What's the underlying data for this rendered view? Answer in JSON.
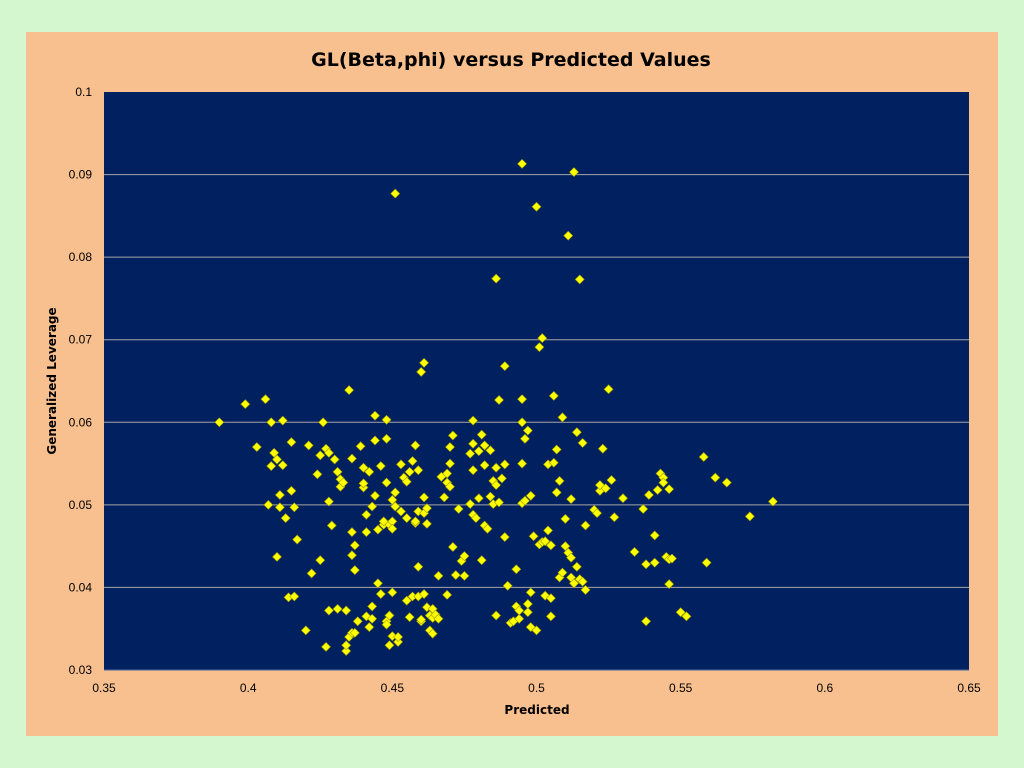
{
  "chart_data": {
    "type": "scatter",
    "title": "GL(Beta,phi) versus Predicted Values",
    "xlabel": "Predicted",
    "ylabel": "Generalized Leverage",
    "xlim": [
      0.35,
      0.65
    ],
    "ylim": [
      0.03,
      0.1
    ],
    "x_ticks": [
      "0.35",
      "0.4",
      "0.45",
      "0.5",
      "0.55",
      "0.6",
      "0.65"
    ],
    "y_ticks": [
      "0.03",
      "0.04",
      "0.05",
      "0.06",
      "0.07",
      "0.08",
      "0.09",
      "0.1"
    ],
    "grid": "horizontal",
    "legend": "none",
    "colors": {
      "plot_bg": "#002060",
      "marker_fill": "#ffff00",
      "marker_edge": "#999900",
      "gridline": "#a6a6a6",
      "frame_bg": "#f9c08f",
      "page_bg": "#d4f7d0"
    },
    "marker": "diamond",
    "points": [
      [
        0.39,
        0.06
      ],
      [
        0.399,
        0.0622
      ],
      [
        0.403,
        0.057
      ],
      [
        0.406,
        0.0628
      ],
      [
        0.407,
        0.05
      ],
      [
        0.408,
        0.06
      ],
      [
        0.408,
        0.0547
      ],
      [
        0.409,
        0.0563
      ],
      [
        0.41,
        0.0555
      ],
      [
        0.41,
        0.0437
      ],
      [
        0.411,
        0.0512
      ],
      [
        0.411,
        0.0497
      ],
      [
        0.412,
        0.0548
      ],
      [
        0.412,
        0.0602
      ],
      [
        0.413,
        0.0484
      ],
      [
        0.414,
        0.0388
      ],
      [
        0.415,
        0.0517
      ],
      [
        0.415,
        0.0576
      ],
      [
        0.416,
        0.0389
      ],
      [
        0.416,
        0.0497
      ],
      [
        0.417,
        0.0458
      ],
      [
        0.42,
        0.0348
      ],
      [
        0.421,
        0.0572
      ],
      [
        0.422,
        0.0417
      ],
      [
        0.424,
        0.0537
      ],
      [
        0.425,
        0.0433
      ],
      [
        0.425,
        0.056
      ],
      [
        0.426,
        0.06
      ],
      [
        0.427,
        0.0568
      ],
      [
        0.427,
        0.0328
      ],
      [
        0.428,
        0.0504
      ],
      [
        0.428,
        0.0372
      ],
      [
        0.428,
        0.0563
      ],
      [
        0.429,
        0.0475
      ],
      [
        0.43,
        0.0555
      ],
      [
        0.431,
        0.0374
      ],
      [
        0.431,
        0.054
      ],
      [
        0.432,
        0.0531
      ],
      [
        0.432,
        0.0522
      ],
      [
        0.433,
        0.0527
      ],
      [
        0.434,
        0.0372
      ],
      [
        0.434,
        0.0323
      ],
      [
        0.434,
        0.033
      ],
      [
        0.435,
        0.0639
      ],
      [
        0.435,
        0.034
      ],
      [
        0.436,
        0.0439
      ],
      [
        0.436,
        0.0467
      ],
      [
        0.436,
        0.0345
      ],
      [
        0.436,
        0.0556
      ],
      [
        0.437,
        0.0451
      ],
      [
        0.437,
        0.0421
      ],
      [
        0.437,
        0.0345
      ],
      [
        0.438,
        0.0359
      ],
      [
        0.439,
        0.0571
      ],
      [
        0.44,
        0.0521
      ],
      [
        0.44,
        0.0545
      ],
      [
        0.44,
        0.0526
      ],
      [
        0.441,
        0.0467
      ],
      [
        0.441,
        0.0365
      ],
      [
        0.441,
        0.0488
      ],
      [
        0.442,
        0.0352
      ],
      [
        0.442,
        0.054
      ],
      [
        0.443,
        0.0498
      ],
      [
        0.443,
        0.0377
      ],
      [
        0.443,
        0.0362
      ],
      [
        0.444,
        0.0511
      ],
      [
        0.444,
        0.0608
      ],
      [
        0.444,
        0.0578
      ],
      [
        0.445,
        0.0405
      ],
      [
        0.445,
        0.047
      ],
      [
        0.446,
        0.0547
      ],
      [
        0.446,
        0.0392
      ],
      [
        0.447,
        0.0476
      ],
      [
        0.447,
        0.048
      ],
      [
        0.448,
        0.0603
      ],
      [
        0.448,
        0.0527
      ],
      [
        0.448,
        0.058
      ],
      [
        0.448,
        0.0359
      ],
      [
        0.448,
        0.0355
      ],
      [
        0.449,
        0.0476
      ],
      [
        0.449,
        0.0366
      ],
      [
        0.449,
        0.033
      ],
      [
        0.449,
        0.0366
      ],
      [
        0.45,
        0.0341
      ],
      [
        0.45,
        0.048
      ],
      [
        0.45,
        0.0506
      ],
      [
        0.45,
        0.0471
      ],
      [
        0.45,
        0.0394
      ],
      [
        0.451,
        0.0498
      ],
      [
        0.451,
        0.0515
      ],
      [
        0.451,
        0.0877
      ],
      [
        0.452,
        0.0334
      ],
      [
        0.452,
        0.034
      ],
      [
        0.453,
        0.0492
      ],
      [
        0.453,
        0.0549
      ],
      [
        0.454,
        0.0533
      ],
      [
        0.455,
        0.0528
      ],
      [
        0.455,
        0.0384
      ],
      [
        0.455,
        0.0484
      ],
      [
        0.456,
        0.054
      ],
      [
        0.456,
        0.0364
      ],
      [
        0.457,
        0.0389
      ],
      [
        0.457,
        0.0553
      ],
      [
        0.458,
        0.0572
      ],
      [
        0.458,
        0.0478
      ],
      [
        0.458,
        0.048
      ],
      [
        0.459,
        0.0542
      ],
      [
        0.459,
        0.0492
      ],
      [
        0.459,
        0.0425
      ],
      [
        0.459,
        0.0389
      ],
      [
        0.46,
        0.0359
      ],
      [
        0.46,
        0.0661
      ],
      [
        0.46,
        0.0361
      ],
      [
        0.461,
        0.0672
      ],
      [
        0.461,
        0.049
      ],
      [
        0.461,
        0.0509
      ],
      [
        0.461,
        0.0392
      ],
      [
        0.462,
        0.0496
      ],
      [
        0.462,
        0.0477
      ],
      [
        0.462,
        0.0376
      ],
      [
        0.463,
        0.0366
      ],
      [
        0.463,
        0.0348
      ],
      [
        0.464,
        0.0344
      ],
      [
        0.464,
        0.0374
      ],
      [
        0.464,
        0.0363
      ],
      [
        0.465,
        0.0367
      ],
      [
        0.466,
        0.0362
      ],
      [
        0.466,
        0.0414
      ],
      [
        0.467,
        0.0534
      ],
      [
        0.468,
        0.0509
      ],
      [
        0.469,
        0.0391
      ],
      [
        0.469,
        0.0538
      ],
      [
        0.469,
        0.0527
      ],
      [
        0.47,
        0.057
      ],
      [
        0.47,
        0.0522
      ],
      [
        0.47,
        0.055
      ],
      [
        0.471,
        0.0584
      ],
      [
        0.471,
        0.0449
      ],
      [
        0.472,
        0.0415
      ],
      [
        0.473,
        0.0495
      ],
      [
        0.474,
        0.0432
      ],
      [
        0.475,
        0.0414
      ],
      [
        0.475,
        0.0438
      ],
      [
        0.477,
        0.0562
      ],
      [
        0.477,
        0.0501
      ],
      [
        0.478,
        0.0602
      ],
      [
        0.478,
        0.0488
      ],
      [
        0.478,
        0.0574
      ],
      [
        0.478,
        0.0542
      ],
      [
        0.479,
        0.0484
      ],
      [
        0.48,
        0.0565
      ],
      [
        0.48,
        0.0508
      ],
      [
        0.481,
        0.0433
      ],
      [
        0.481,
        0.0585
      ],
      [
        0.482,
        0.0548
      ],
      [
        0.482,
        0.0572
      ],
      [
        0.482,
        0.0475
      ],
      [
        0.483,
        0.0471
      ],
      [
        0.484,
        0.051
      ],
      [
        0.484,
        0.0566
      ],
      [
        0.485,
        0.0501
      ],
      [
        0.485,
        0.0529
      ],
      [
        0.486,
        0.0545
      ],
      [
        0.486,
        0.0366
      ],
      [
        0.486,
        0.0524
      ],
      [
        0.486,
        0.0774
      ],
      [
        0.487,
        0.0627
      ],
      [
        0.487,
        0.0503
      ],
      [
        0.488,
        0.0532
      ],
      [
        0.489,
        0.0549
      ],
      [
        0.489,
        0.0668
      ],
      [
        0.489,
        0.0461
      ],
      [
        0.49,
        0.0402
      ],
      [
        0.491,
        0.0357
      ],
      [
        0.492,
        0.0359
      ],
      [
        0.493,
        0.0422
      ],
      [
        0.493,
        0.0377
      ],
      [
        0.494,
        0.0362
      ],
      [
        0.494,
        0.0372
      ],
      [
        0.495,
        0.0913
      ],
      [
        0.495,
        0.0502
      ],
      [
        0.495,
        0.0628
      ],
      [
        0.495,
        0.055
      ],
      [
        0.495,
        0.06
      ],
      [
        0.496,
        0.058
      ],
      [
        0.496,
        0.0505
      ],
      [
        0.497,
        0.059
      ],
      [
        0.497,
        0.037
      ],
      [
        0.497,
        0.038
      ],
      [
        0.498,
        0.0352
      ],
      [
        0.498,
        0.0511
      ],
      [
        0.498,
        0.0394
      ],
      [
        0.499,
        0.0462
      ],
      [
        0.5,
        0.0861
      ],
      [
        0.5,
        0.0348
      ],
      [
        0.501,
        0.0691
      ],
      [
        0.501,
        0.0452
      ],
      [
        0.502,
        0.0455
      ],
      [
        0.502,
        0.0702
      ],
      [
        0.503,
        0.039
      ],
      [
        0.503,
        0.0456
      ],
      [
        0.504,
        0.0469
      ],
      [
        0.504,
        0.0549
      ],
      [
        0.505,
        0.0387
      ],
      [
        0.505,
        0.0365
      ],
      [
        0.505,
        0.0451
      ],
      [
        0.506,
        0.0632
      ],
      [
        0.506,
        0.0551
      ],
      [
        0.507,
        0.0567
      ],
      [
        0.507,
        0.0515
      ],
      [
        0.508,
        0.0529
      ],
      [
        0.508,
        0.0412
      ],
      [
        0.509,
        0.0418
      ],
      [
        0.509,
        0.0606
      ],
      [
        0.51,
        0.045
      ],
      [
        0.51,
        0.0483
      ],
      [
        0.511,
        0.0826
      ],
      [
        0.511,
        0.0442
      ],
      [
        0.512,
        0.0436
      ],
      [
        0.512,
        0.0507
      ],
      [
        0.512,
        0.0412
      ],
      [
        0.513,
        0.0903
      ],
      [
        0.513,
        0.0405
      ],
      [
        0.514,
        0.0425
      ],
      [
        0.514,
        0.0588
      ],
      [
        0.515,
        0.0773
      ],
      [
        0.515,
        0.041
      ],
      [
        0.516,
        0.0575
      ],
      [
        0.516,
        0.0407
      ],
      [
        0.517,
        0.0475
      ],
      [
        0.517,
        0.0397
      ],
      [
        0.52,
        0.0494
      ],
      [
        0.521,
        0.049
      ],
      [
        0.522,
        0.0517
      ],
      [
        0.522,
        0.0524
      ],
      [
        0.523,
        0.0568
      ],
      [
        0.524,
        0.052
      ],
      [
        0.525,
        0.064
      ],
      [
        0.526,
        0.053
      ],
      [
        0.527,
        0.0485
      ],
      [
        0.53,
        0.0508
      ],
      [
        0.534,
        0.0443
      ],
      [
        0.537,
        0.0495
      ],
      [
        0.538,
        0.0428
      ],
      [
        0.538,
        0.0359
      ],
      [
        0.539,
        0.0512
      ],
      [
        0.541,
        0.0463
      ],
      [
        0.541,
        0.043
      ],
      [
        0.542,
        0.0518
      ],
      [
        0.543,
        0.0538
      ],
      [
        0.544,
        0.0533
      ],
      [
        0.544,
        0.0527
      ],
      [
        0.545,
        0.0437
      ],
      [
        0.546,
        0.0434
      ],
      [
        0.546,
        0.0519
      ],
      [
        0.546,
        0.0404
      ],
      [
        0.547,
        0.0435
      ],
      [
        0.55,
        0.037
      ],
      [
        0.552,
        0.0365
      ],
      [
        0.558,
        0.0558
      ],
      [
        0.559,
        0.043
      ],
      [
        0.562,
        0.0533
      ],
      [
        0.566,
        0.0527
      ],
      [
        0.574,
        0.0486
      ],
      [
        0.582,
        0.0504
      ]
    ]
  }
}
